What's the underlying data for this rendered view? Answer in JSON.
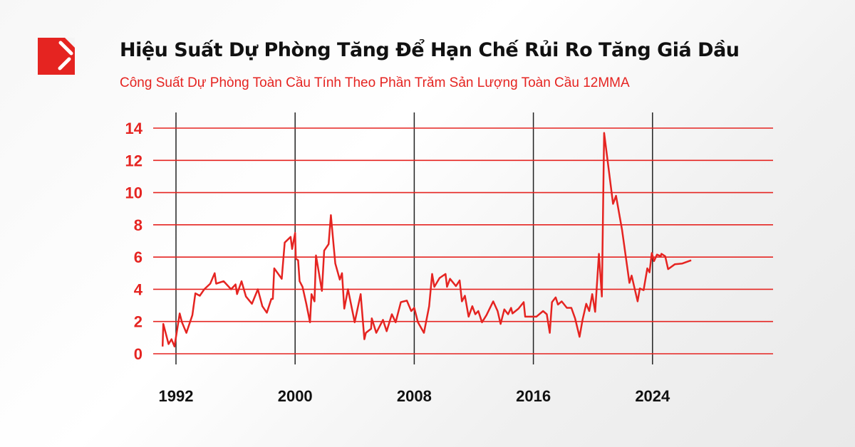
{
  "logo": {
    "name": "brand-logo",
    "color": "#e52421"
  },
  "header": {
    "title": "Hiệu Suất Dự Phòng Tăng Để Hạn Chế Rủi Ro Tăng Giá Dầu",
    "subtitle": "Công Suất Dự Phòng Toàn Cầu Tính Theo Phần Trăm Sản Lượng Toàn Cầu 12MMA"
  },
  "chart_data": {
    "type": "line",
    "title": "Hiệu Suất Dự Phòng Tăng Để Hạn Chế Rủi Ro Tăng Giá Dầu",
    "subtitle": "Công Suất Dự Phòng Toàn Cầu Tính Theo Phần Trăm Sản Lượng Toàn Cầu 12MMA",
    "xlabel": "",
    "ylabel": "",
    "ylim": [
      0,
      14
    ],
    "yticks": [
      "0",
      "2",
      "4",
      "6",
      "8",
      "10",
      "12",
      "14"
    ],
    "xticks": [
      "1992",
      "2000",
      "2008",
      "2016",
      "2024"
    ],
    "grid": "horizontal red lines at y ticks; vertical black lines at x ticks",
    "line_color": "#e52421",
    "points": [
      [
        1991.1,
        0.45
      ],
      [
        1991.15,
        1.85
      ],
      [
        1991.5,
        0.6
      ],
      [
        1991.7,
        0.9
      ],
      [
        1991.9,
        0.45
      ],
      [
        1992.25,
        2.5
      ],
      [
        1992.4,
        1.95
      ],
      [
        1992.7,
        1.3
      ],
      [
        1993.1,
        2.4
      ],
      [
        1993.3,
        3.75
      ],
      [
        1993.6,
        3.6
      ],
      [
        1993.9,
        4.0
      ],
      [
        1994.3,
        4.35
      ],
      [
        1994.6,
        5.0
      ],
      [
        1994.7,
        4.35
      ],
      [
        1995.2,
        4.5
      ],
      [
        1995.7,
        4.0
      ],
      [
        1996.0,
        4.3
      ],
      [
        1996.1,
        3.7
      ],
      [
        1996.4,
        4.5
      ],
      [
        1996.7,
        3.55
      ],
      [
        1997.1,
        3.1
      ],
      [
        1997.5,
        4.0
      ],
      [
        1997.8,
        2.95
      ],
      [
        1998.1,
        2.55
      ],
      [
        1998.4,
        3.4
      ],
      [
        1998.5,
        3.4
      ],
      [
        1998.6,
        5.3
      ],
      [
        1999.1,
        4.65
      ],
      [
        1999.3,
        6.9
      ],
      [
        1999.7,
        7.25
      ],
      [
        1999.8,
        6.5
      ],
      [
        2000.0,
        7.5
      ],
      [
        2000.05,
        5.9
      ],
      [
        2000.2,
        5.8
      ],
      [
        2000.3,
        4.5
      ],
      [
        2000.5,
        4.15
      ],
      [
        2000.75,
        3.1
      ],
      [
        2001.0,
        1.95
      ],
      [
        2001.1,
        3.7
      ],
      [
        2001.3,
        3.25
      ],
      [
        2001.4,
        6.1
      ],
      [
        2001.8,
        3.9
      ],
      [
        2001.95,
        6.4
      ],
      [
        2002.25,
        6.8
      ],
      [
        2002.4,
        8.6
      ],
      [
        2002.6,
        6.6
      ],
      [
        2002.7,
        5.6
      ],
      [
        2003.0,
        4.6
      ],
      [
        2003.15,
        5.0
      ],
      [
        2003.3,
        2.8
      ],
      [
        2003.55,
        4.0
      ],
      [
        2004.0,
        1.95
      ],
      [
        2004.4,
        3.7
      ],
      [
        2004.65,
        0.9
      ],
      [
        2004.75,
        1.3
      ],
      [
        2005.1,
        1.55
      ],
      [
        2005.15,
        2.2
      ],
      [
        2005.45,
        1.3
      ],
      [
        2005.9,
        2.1
      ],
      [
        2006.15,
        1.4
      ],
      [
        2006.5,
        2.45
      ],
      [
        2006.75,
        1.95
      ],
      [
        2007.1,
        3.2
      ],
      [
        2007.5,
        3.3
      ],
      [
        2007.8,
        2.65
      ],
      [
        2008.0,
        2.85
      ],
      [
        2008.25,
        1.95
      ],
      [
        2008.65,
        1.3
      ],
      [
        2009.0,
        2.95
      ],
      [
        2009.2,
        4.95
      ],
      [
        2009.35,
        4.15
      ],
      [
        2009.7,
        4.7
      ],
      [
        2010.1,
        4.95
      ],
      [
        2010.2,
        4.15
      ],
      [
        2010.4,
        4.65
      ],
      [
        2010.8,
        4.2
      ],
      [
        2011.05,
        4.55
      ],
      [
        2011.2,
        3.25
      ],
      [
        2011.4,
        3.6
      ],
      [
        2011.65,
        2.3
      ],
      [
        2011.9,
        2.95
      ],
      [
        2012.1,
        2.45
      ],
      [
        2012.3,
        2.65
      ],
      [
        2012.55,
        1.95
      ],
      [
        2012.85,
        2.4
      ],
      [
        2013.3,
        3.25
      ],
      [
        2013.6,
        2.65
      ],
      [
        2013.8,
        1.85
      ],
      [
        2014.05,
        2.75
      ],
      [
        2014.3,
        2.45
      ],
      [
        2014.5,
        2.85
      ],
      [
        2014.6,
        2.5
      ],
      [
        2015.0,
        2.8
      ],
      [
        2015.35,
        3.2
      ],
      [
        2015.45,
        2.3
      ],
      [
        2016.2,
        2.3
      ],
      [
        2016.65,
        2.65
      ],
      [
        2016.9,
        2.45
      ],
      [
        2017.1,
        1.3
      ],
      [
        2017.25,
        3.2
      ],
      [
        2017.5,
        3.5
      ],
      [
        2017.65,
        3.05
      ],
      [
        2017.9,
        3.25
      ],
      [
        2018.25,
        2.85
      ],
      [
        2018.55,
        2.85
      ],
      [
        2018.8,
        2.2
      ],
      [
        2019.1,
        1.05
      ],
      [
        2019.3,
        2.1
      ],
      [
        2019.55,
        3.1
      ],
      [
        2019.75,
        2.65
      ],
      [
        2019.95,
        3.7
      ],
      [
        2020.15,
        2.6
      ],
      [
        2020.4,
        6.2
      ],
      [
        2020.6,
        3.55
      ],
      [
        2020.75,
        13.7
      ],
      [
        2021.35,
        9.3
      ],
      [
        2021.55,
        9.8
      ],
      [
        2021.95,
        7.7
      ],
      [
        2022.45,
        4.4
      ],
      [
        2022.6,
        4.85
      ],
      [
        2023.0,
        3.25
      ],
      [
        2023.15,
        4.05
      ],
      [
        2023.4,
        3.95
      ],
      [
        2023.65,
        5.3
      ],
      [
        2023.8,
        5.05
      ],
      [
        2023.95,
        6.25
      ],
      [
        2024.1,
        5.75
      ],
      [
        2024.3,
        6.15
      ],
      [
        2024.55,
        6.05
      ],
      [
        2024.6,
        6.2
      ],
      [
        2024.85,
        6.05
      ],
      [
        2025.05,
        5.25
      ],
      [
        2025.5,
        5.55
      ],
      [
        2026.0,
        5.6
      ],
      [
        2026.6,
        5.8
      ]
    ]
  }
}
